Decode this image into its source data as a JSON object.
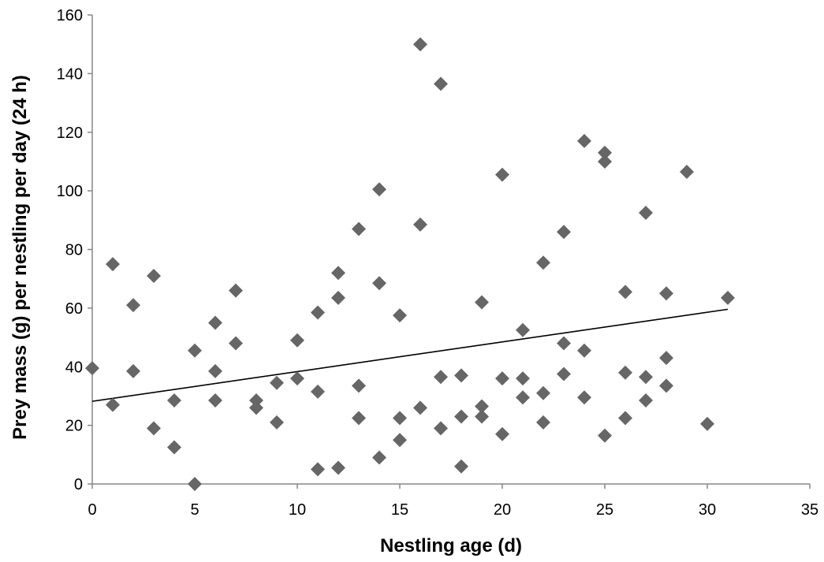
{
  "chart_data": {
    "type": "scatter",
    "title": "",
    "xlabel": "Nestling age (d)",
    "ylabel": "Prey mass (g) per nestling per day (24 h)",
    "xlim": [
      0,
      35
    ],
    "ylim": [
      0,
      160
    ],
    "xticks": [
      0,
      5,
      10,
      15,
      20,
      25,
      30,
      35
    ],
    "yticks": [
      0,
      20,
      40,
      60,
      80,
      100,
      120,
      140,
      160
    ],
    "grid": false,
    "legend": "none",
    "marker": "diamond",
    "marker_color": "#666666",
    "series": [
      {
        "points": [
          [
            0,
            39.5
          ],
          [
            1,
            75
          ],
          [
            1,
            27
          ],
          [
            2,
            61
          ],
          [
            2,
            38.5
          ],
          [
            3,
            71
          ],
          [
            3,
            19
          ],
          [
            4,
            28.5
          ],
          [
            4,
            12.5
          ],
          [
            5,
            45.5
          ],
          [
            5,
            0
          ],
          [
            6,
            55
          ],
          [
            6,
            38.5
          ],
          [
            6,
            28.5
          ],
          [
            7,
            66
          ],
          [
            7,
            48
          ],
          [
            8,
            28.5
          ],
          [
            8,
            26
          ],
          [
            9,
            34.5
          ],
          [
            9,
            21
          ],
          [
            10,
            49
          ],
          [
            10,
            36
          ],
          [
            11,
            58.5
          ],
          [
            11,
            31.5
          ],
          [
            11,
            5
          ],
          [
            12,
            72
          ],
          [
            12,
            63.5
          ],
          [
            12,
            5.5
          ],
          [
            13,
            87
          ],
          [
            13,
            33.5
          ],
          [
            13,
            22.5
          ],
          [
            14,
            100.5
          ],
          [
            14,
            68.5
          ],
          [
            14,
            9
          ],
          [
            15,
            57.5
          ],
          [
            15,
            22.5
          ],
          [
            15,
            15
          ],
          [
            16,
            150
          ],
          [
            16,
            88.5
          ],
          [
            16,
            26
          ],
          [
            17,
            136.5
          ],
          [
            17,
            36.5
          ],
          [
            17,
            19
          ],
          [
            18,
            37
          ],
          [
            18,
            23
          ],
          [
            18,
            6
          ],
          [
            19,
            62
          ],
          [
            19,
            26.5
          ],
          [
            19,
            23
          ],
          [
            20,
            105.5
          ],
          [
            20,
            36
          ],
          [
            20,
            17
          ],
          [
            21,
            52.5
          ],
          [
            21,
            36
          ],
          [
            21,
            29.5
          ],
          [
            22,
            75.5
          ],
          [
            22,
            31
          ],
          [
            22,
            21
          ],
          [
            23,
            86
          ],
          [
            23,
            48
          ],
          [
            23,
            37.5
          ],
          [
            24,
            117
          ],
          [
            24,
            45.5
          ],
          [
            24,
            29.5
          ],
          [
            25,
            113
          ],
          [
            25,
            110
          ],
          [
            25,
            16.5
          ],
          [
            26,
            65.5
          ],
          [
            26,
            38
          ],
          [
            26,
            22.5
          ],
          [
            27,
            92.5
          ],
          [
            27,
            36.5
          ],
          [
            27,
            28.5
          ],
          [
            28,
            65
          ],
          [
            28,
            43
          ],
          [
            28,
            33.5
          ],
          [
            29,
            106.5
          ],
          [
            30,
            20.5
          ],
          [
            31,
            63.5
          ]
        ]
      }
    ],
    "trendline": {
      "type": "linear",
      "x": [
        0,
        31
      ],
      "y": [
        28.2,
        59.6
      ],
      "color": "#000000"
    }
  }
}
